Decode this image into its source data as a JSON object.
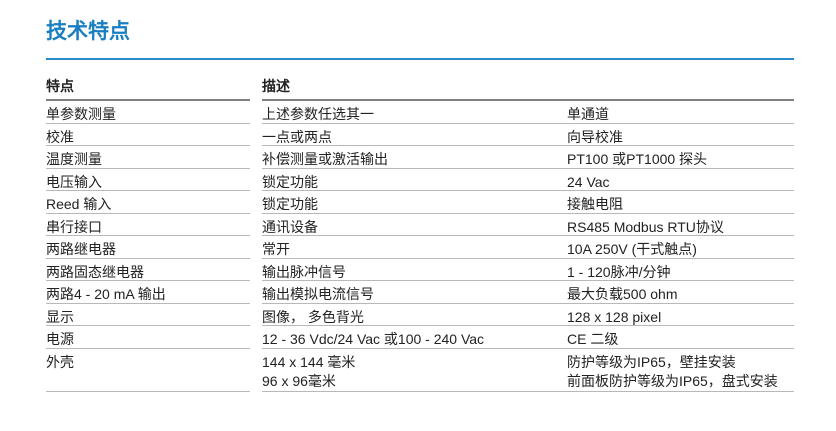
{
  "title": "技术特点",
  "colors": {
    "accent": "#1a7fc0"
  },
  "table": {
    "headers": [
      "特点",
      "描述"
    ],
    "rows": [
      {
        "feature": "单参数测量",
        "desc": "上述参数任选其一",
        "detail": "单通道"
      },
      {
        "feature": "校准",
        "desc": "一点或两点",
        "detail": "向导校准"
      },
      {
        "feature": "温度测量",
        "desc": "补偿测量或激活输出",
        "detail": "PT100 或PT1000 探头"
      },
      {
        "feature": "电压输入",
        "desc": "锁定功能",
        "detail": "24 Vac"
      },
      {
        "feature": "Reed 输入",
        "desc": "锁定功能",
        "detail": "接触电阻"
      },
      {
        "feature": "串行接口",
        "desc": "通讯设备",
        "detail": "RS485 Modbus RTU协议"
      },
      {
        "feature": "两路继电器",
        "desc": "常开",
        "detail": "10A 250V (干式触点)"
      },
      {
        "feature": "两路固态继电器",
        "desc": "输出脉冲信号",
        "detail": "1 - 120脉冲/分钟"
      },
      {
        "feature": "两路4 - 20 mA 输出",
        "desc": "输出模拟电流信号",
        "detail": "最大负载500 ohm"
      },
      {
        "feature": "显示",
        "desc": "图像， 多色背光",
        "detail": "128 x 128 pixel"
      },
      {
        "feature": "电源",
        "desc": "12 - 36 Vdc/24 Vac 或100 - 240 Vac",
        "detail": "CE 二级"
      },
      {
        "feature": "外壳",
        "desc": "144 x 144 毫米",
        "detail": "防护等级为IP65，壁挂安装",
        "desc2": "96 x 96毫米",
        "detail2": "前面板防护等级为IP65，盘式安装"
      }
    ]
  }
}
